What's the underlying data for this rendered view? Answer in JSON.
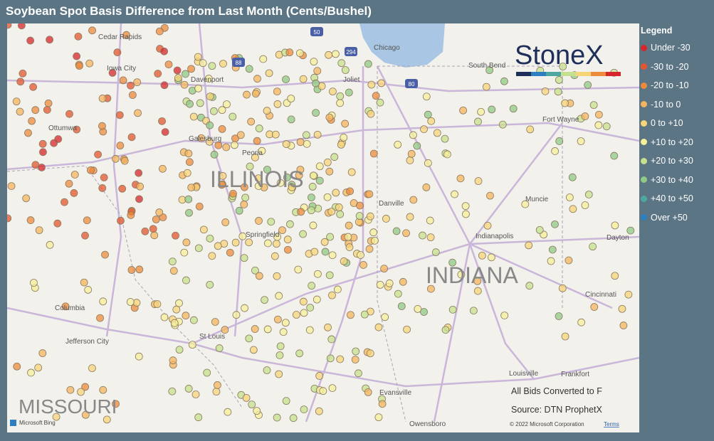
{
  "header": {
    "title": "Soybean Spot Basis Difference from Last Month (Cents/Bushel)"
  },
  "legend": {
    "title": "Legend",
    "items": [
      {
        "label": "Under -30",
        "color": "#d7262b"
      },
      {
        "label": "-30 to -20",
        "color": "#e4562f"
      },
      {
        "label": "-20 to -10",
        "color": "#ee8a3c"
      },
      {
        "label": "-10 to 0",
        "color": "#f5b45e"
      },
      {
        "label": "0 to +10",
        "color": "#f8d479"
      },
      {
        "label": "+10 to +20",
        "color": "#f7ef9a"
      },
      {
        "label": "+20 to +30",
        "color": "#c5e08e"
      },
      {
        "label": "+30 to +40",
        "color": "#8fcb86"
      },
      {
        "label": "+40 to +50",
        "color": "#4fa8a0"
      },
      {
        "label": "Over +50",
        "color": "#2d7fc0"
      }
    ]
  },
  "map": {
    "places": [
      "Cedar Rapids",
      "Iowa City",
      "Davenport",
      "Ottumwa",
      "Galesburg",
      "Peoria",
      "Chicago",
      "Joliet",
      "South Bend",
      "Fort Wayne",
      "Muncie",
      "Danville",
      "Indianapolis",
      "Dayton",
      "Springfield",
      "Columbia",
      "Jefferson City",
      "St Louis",
      "Cincinnati",
      "Louisville",
      "Frankfort",
      "Evansville",
      "Owensboro"
    ],
    "states": [
      "ILLINOIS",
      "INDIANA",
      "MISSOURI"
    ],
    "shields": [
      "50",
      "294",
      "88",
      "80"
    ],
    "logo": "StoneX",
    "notes": [
      "All Bids Converted to F",
      "Source: DTN ProphetX"
    ],
    "attribution": [
      "Microsoft Bing",
      "© 2022 Microsoft Corporation",
      "Terms"
    ]
  }
}
